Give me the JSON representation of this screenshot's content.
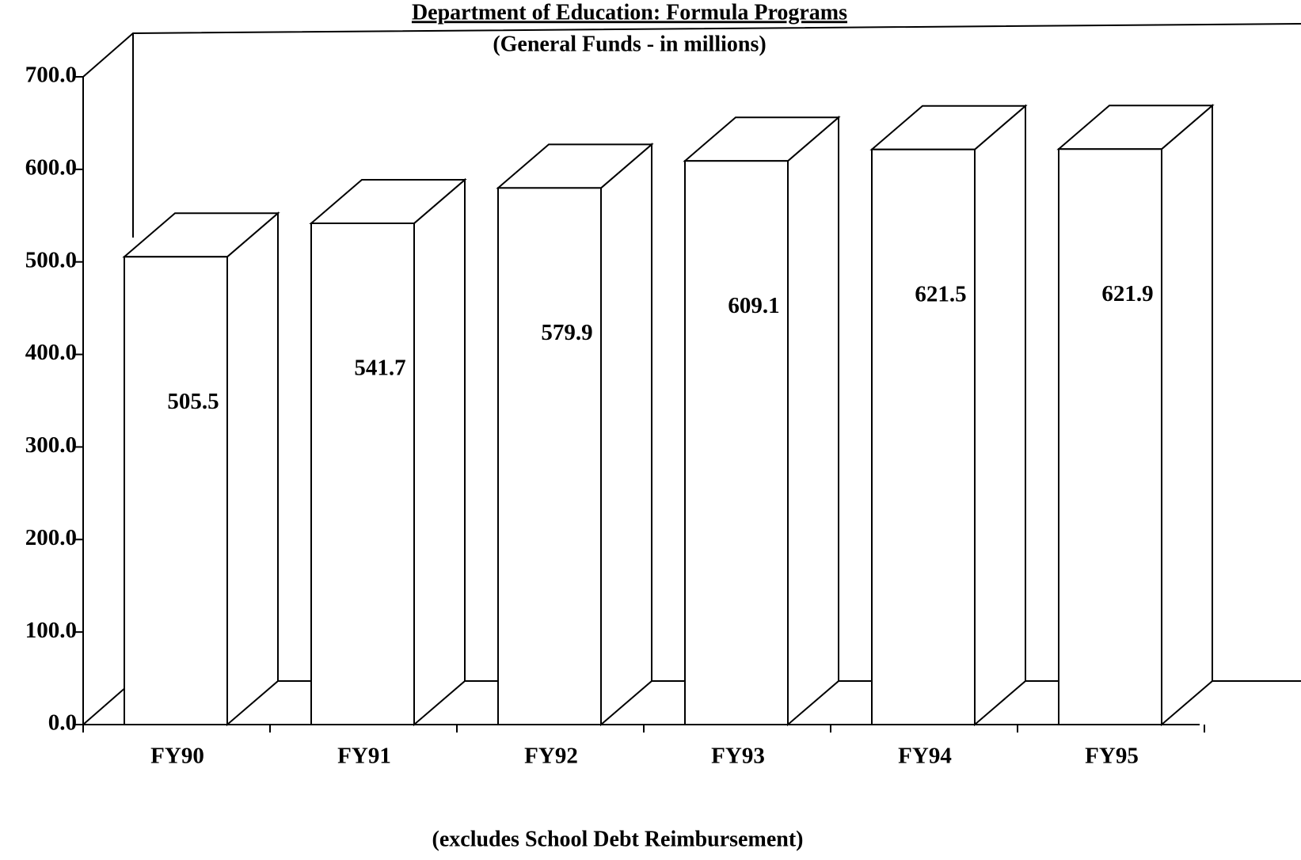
{
  "chart_data": {
    "type": "bar3d",
    "title": "Department of Education:  Formula Programs",
    "subtitle": "(General Funds - in millions)",
    "xlabel": "(excludes School Debt Reimbursement)",
    "categories": [
      "FY90",
      "FY91",
      "FY92",
      "FY93",
      "FY94",
      "FY95"
    ],
    "values": [
      505.5,
      541.7,
      579.9,
      609.1,
      621.5,
      621.9
    ],
    "color": "#ffffff",
    "ylim": [
      0,
      700
    ],
    "yticks": [
      {
        "value": 0,
        "label": "0.0"
      },
      {
        "value": 100,
        "label": "100.0"
      },
      {
        "value": 200,
        "label": "200.0"
      },
      {
        "value": 300,
        "label": "300.0"
      },
      {
        "value": 400,
        "label": "400.0"
      },
      {
        "value": 500,
        "label": "500.0"
      },
      {
        "value": 600,
        "label": "600.0"
      },
      {
        "value": 700,
        "label": "700.0"
      }
    ]
  }
}
